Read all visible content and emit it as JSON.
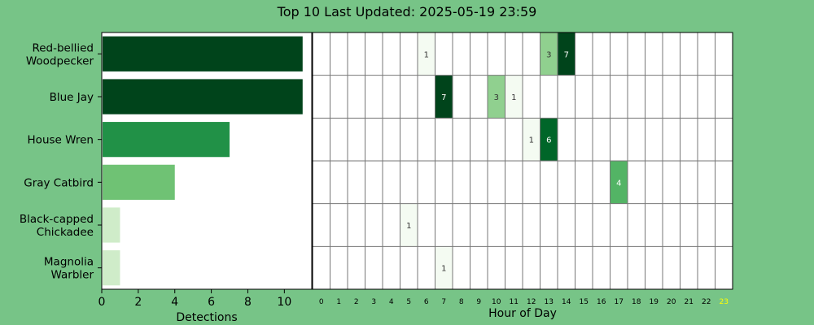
{
  "title": "Top 10 Last Updated: 2025-05-19 23:59",
  "colors": {
    "background": "#77c487",
    "grid": "#777777",
    "current_hour": "#ffff00",
    "greens": [
      "#f4fbf2",
      "#c7e9c0",
      "#74c476",
      "#31a354",
      "#006d2c",
      "#00441b"
    ]
  },
  "chart_data": [
    {
      "type": "bar",
      "orientation": "horizontal",
      "categories": [
        "Red-bellied\nWoodpecker",
        "Blue Jay",
        "House Wren",
        "Gray Catbird",
        "Black-capped\nChickadee",
        "Magnolia\nWarbler"
      ],
      "values": [
        11,
        11,
        7,
        4,
        1,
        1
      ],
      "xlabel": "Detections",
      "xlim": [
        0,
        11.5
      ],
      "xticks": [
        0,
        2,
        4,
        6,
        8,
        10
      ]
    },
    {
      "type": "heatmap",
      "xlabel": "Hour of Day",
      "x": [
        0,
        1,
        2,
        3,
        4,
        5,
        6,
        7,
        8,
        9,
        10,
        11,
        12,
        13,
        14,
        15,
        16,
        17,
        18,
        19,
        20,
        21,
        22,
        23
      ],
      "highlight_hour": 23,
      "rows": [
        {
          "species": "Red-bellied Woodpecker",
          "cells": [
            {
              "hour": 6,
              "count": 1
            },
            {
              "hour": 13,
              "count": 3
            },
            {
              "hour": 14,
              "count": 7
            }
          ]
        },
        {
          "species": "Blue Jay",
          "cells": [
            {
              "hour": 7,
              "count": 7
            },
            {
              "hour": 10,
              "count": 3
            },
            {
              "hour": 11,
              "count": 1
            }
          ]
        },
        {
          "species": "House Wren",
          "cells": [
            {
              "hour": 12,
              "count": 1
            },
            {
              "hour": 13,
              "count": 6
            }
          ]
        },
        {
          "species": "Gray Catbird",
          "cells": [
            {
              "hour": 17,
              "count": 4
            }
          ]
        },
        {
          "species": "Black-capped Chickadee",
          "cells": [
            {
              "hour": 5,
              "count": 1
            }
          ]
        },
        {
          "species": "Magnolia Warbler",
          "cells": [
            {
              "hour": 7,
              "count": 1
            }
          ]
        }
      ]
    }
  ]
}
